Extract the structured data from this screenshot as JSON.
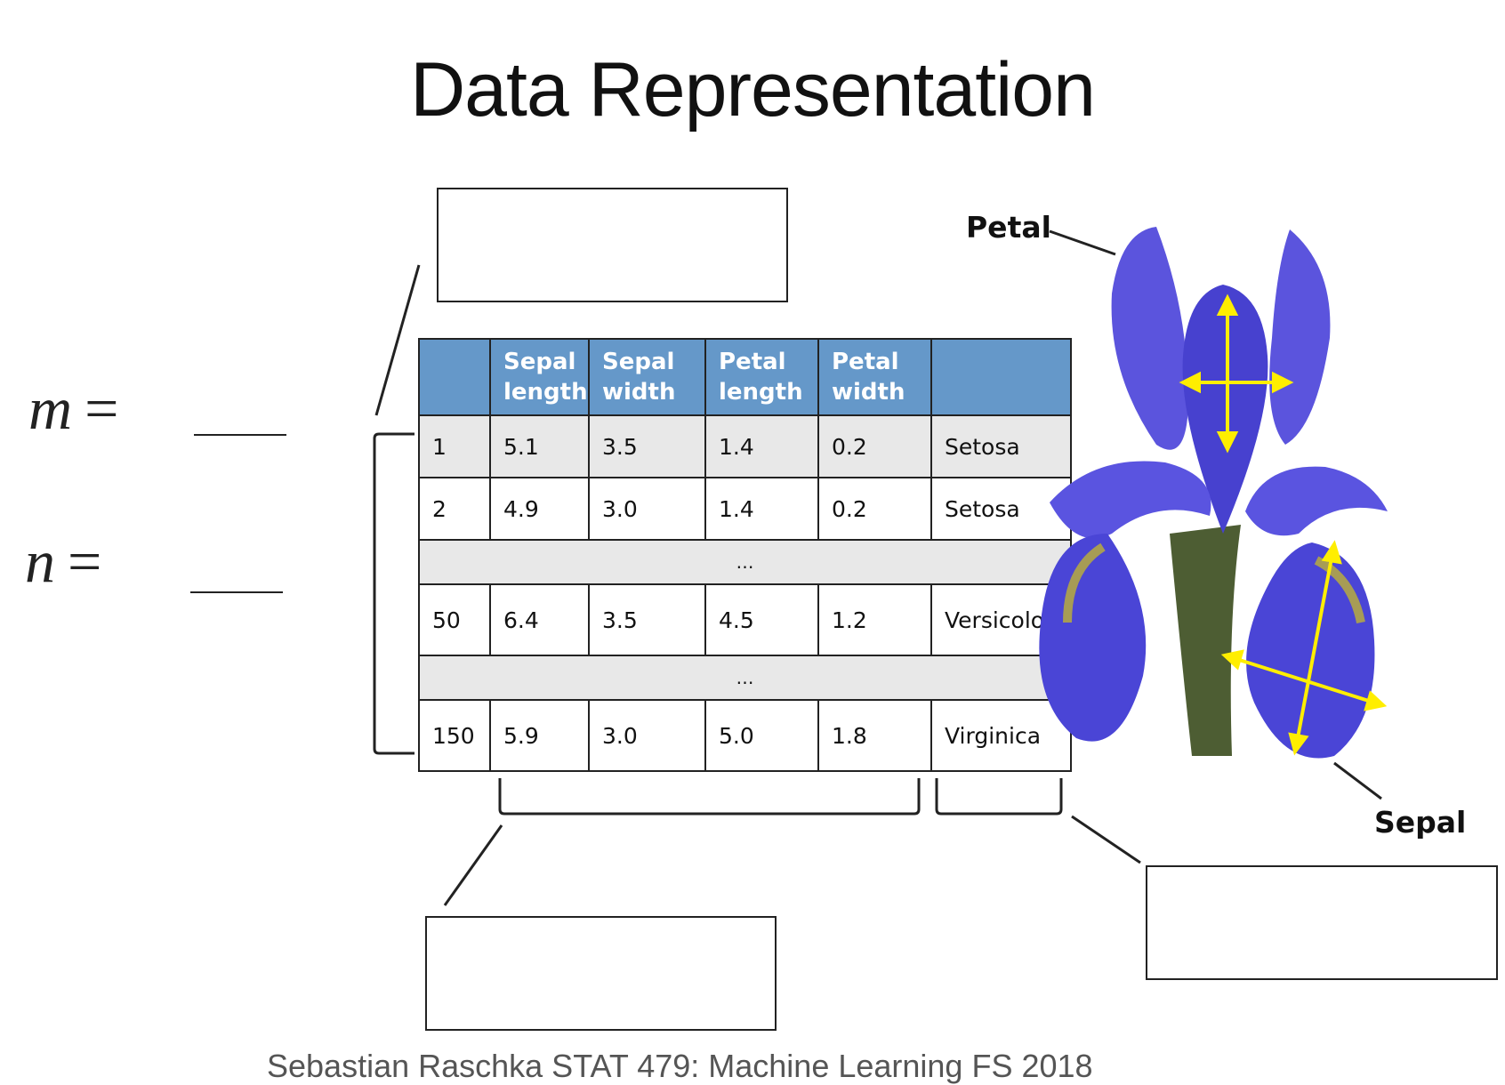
{
  "slide": {
    "title": "Data Representation",
    "m_label": "m",
    "n_label": "n",
    "equals": "="
  },
  "table": {
    "headers": [
      "",
      "Sepal\nlength",
      "Sepal\nwidth",
      "Petal\nlength",
      "Petal\nwidth",
      ""
    ],
    "rows": [
      {
        "cells": [
          "1",
          "5.1",
          "3.5",
          "1.4",
          "0.2",
          "Setosa"
        ]
      },
      {
        "cells": [
          "2",
          "4.9",
          "3.0",
          "1.4",
          "0.2",
          "Setosa"
        ]
      },
      {
        "ellipsis": "…"
      },
      {
        "cells": [
          "50",
          "6.4",
          "3.5",
          "4.5",
          "1.2",
          "Versicolor"
        ]
      },
      {
        "ellipsis": "…"
      },
      {
        "cells": [
          "150",
          "5.9",
          "3.0",
          "5.0",
          "1.8",
          "Virginica"
        ]
      }
    ],
    "header_color": "#6598c9"
  },
  "flower": {
    "petal_label": "Petal",
    "sepal_label": "Sepal",
    "petal_color": "#4a45d6",
    "arrow_color": "#ffee00"
  },
  "footer": {
    "text": "Sebastian Raschka        STAT 479: Machine Learning        FS 2018"
  }
}
